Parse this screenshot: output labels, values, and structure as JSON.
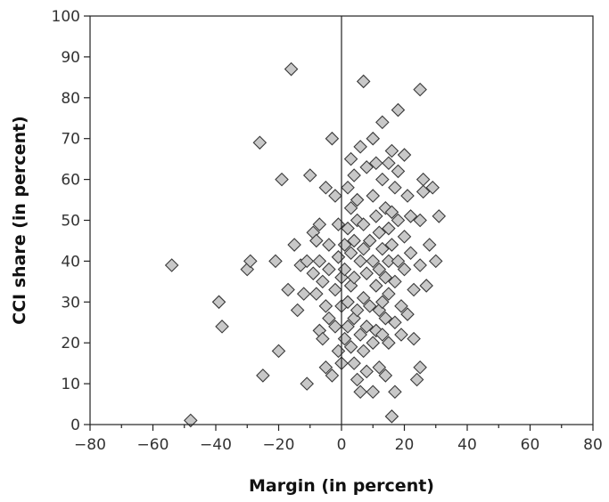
{
  "chart_data": {
    "type": "scatter",
    "title": "",
    "xlabel": "Margin (in percent)",
    "ylabel": "CCI share (in percent)",
    "xlim": [
      -80,
      80
    ],
    "ylim": [
      0,
      100
    ],
    "xticks": [
      -80,
      -60,
      -40,
      -20,
      0,
      20,
      40,
      60,
      80
    ],
    "yticks": [
      0,
      10,
      20,
      30,
      40,
      50,
      60,
      70,
      80,
      90,
      100
    ],
    "xtick_labels": [
      "−80",
      "−60",
      "−40",
      "−20",
      "0",
      "20",
      "40",
      "60",
      "80"
    ],
    "ytick_labels": [
      "0",
      "10",
      "20",
      "30",
      "40",
      "50",
      "60",
      "70",
      "80",
      "90",
      "100"
    ],
    "grid": false,
    "reference_line_x": 0,
    "marker": "diamond",
    "marker_color": "#c8c8c8",
    "points": [
      [
        -54,
        39
      ],
      [
        -48,
        1
      ],
      [
        -39,
        30
      ],
      [
        -38,
        24
      ],
      [
        -30,
        38
      ],
      [
        -29,
        40
      ],
      [
        -26,
        69
      ],
      [
        -25,
        12
      ],
      [
        -21,
        40
      ],
      [
        -20,
        18
      ],
      [
        -19,
        60
      ],
      [
        -17,
        33
      ],
      [
        -16,
        87
      ],
      [
        -15,
        44
      ],
      [
        -14,
        28
      ],
      [
        -13,
        39
      ],
      [
        -12,
        32
      ],
      [
        -11,
        10
      ],
      [
        -11,
        40
      ],
      [
        -10,
        61
      ],
      [
        -9,
        37
      ],
      [
        -9,
        47
      ],
      [
        -8,
        32
      ],
      [
        -8,
        45
      ],
      [
        -7,
        49
      ],
      [
        -7,
        40
      ],
      [
        -7,
        23
      ],
      [
        -6,
        21
      ],
      [
        -6,
        35
      ],
      [
        -5,
        29
      ],
      [
        -5,
        58
      ],
      [
        -5,
        14
      ],
      [
        -4,
        44
      ],
      [
        -4,
        26
      ],
      [
        -4,
        38
      ],
      [
        -3,
        70
      ],
      [
        -3,
        12
      ],
      [
        -2,
        56
      ],
      [
        -2,
        33
      ],
      [
        -2,
        24
      ],
      [
        -1,
        49
      ],
      [
        -1,
        41
      ],
      [
        -1,
        18
      ],
      [
        0,
        29
      ],
      [
        0,
        36
      ],
      [
        0,
        15
      ],
      [
        1,
        44
      ],
      [
        1,
        38
      ],
      [
        1,
        21
      ],
      [
        2,
        58
      ],
      [
        2,
        48
      ],
      [
        2,
        30
      ],
      [
        2,
        24
      ],
      [
        3,
        65
      ],
      [
        3,
        53
      ],
      [
        3,
        42
      ],
      [
        3,
        34
      ],
      [
        3,
        19
      ],
      [
        4,
        61
      ],
      [
        4,
        45
      ],
      [
        4,
        36
      ],
      [
        4,
        26
      ],
      [
        4,
        15
      ],
      [
        5,
        55
      ],
      [
        5,
        28
      ],
      [
        5,
        11
      ],
      [
        5,
        50
      ],
      [
        6,
        68
      ],
      [
        6,
        40
      ],
      [
        6,
        22
      ],
      [
        6,
        8
      ],
      [
        7,
        84
      ],
      [
        7,
        49
      ],
      [
        7,
        43
      ],
      [
        7,
        31
      ],
      [
        7,
        18
      ],
      [
        8,
        63
      ],
      [
        8,
        37
      ],
      [
        8,
        24
      ],
      [
        8,
        13
      ],
      [
        9,
        45
      ],
      [
        9,
        29
      ],
      [
        10,
        70
      ],
      [
        10,
        56
      ],
      [
        10,
        40
      ],
      [
        10,
        20
      ],
      [
        10,
        8
      ],
      [
        11,
        64
      ],
      [
        11,
        51
      ],
      [
        11,
        34
      ],
      [
        11,
        23
      ],
      [
        12,
        47
      ],
      [
        12,
        38
      ],
      [
        12,
        28
      ],
      [
        12,
        14
      ],
      [
        13,
        74
      ],
      [
        13,
        60
      ],
      [
        13,
        43
      ],
      [
        13,
        30
      ],
      [
        13,
        22
      ],
      [
        14,
        53
      ],
      [
        14,
        36
      ],
      [
        14,
        26
      ],
      [
        14,
        12
      ],
      [
        15,
        64
      ],
      [
        15,
        48
      ],
      [
        15,
        40
      ],
      [
        15,
        32
      ],
      [
        15,
        20
      ],
      [
        16,
        67
      ],
      [
        16,
        2
      ],
      [
        16,
        52
      ],
      [
        16,
        44
      ],
      [
        17,
        58
      ],
      [
        17,
        35
      ],
      [
        17,
        25
      ],
      [
        17,
        8
      ],
      [
        18,
        77
      ],
      [
        18,
        62
      ],
      [
        18,
        50
      ],
      [
        18,
        40
      ],
      [
        19,
        29
      ],
      [
        19,
        22
      ],
      [
        20,
        66
      ],
      [
        20,
        46
      ],
      [
        20,
        38
      ],
      [
        21,
        56
      ],
      [
        21,
        27
      ],
      [
        22,
        51
      ],
      [
        22,
        42
      ],
      [
        23,
        33
      ],
      [
        23,
        21
      ],
      [
        24,
        11
      ],
      [
        25,
        82
      ],
      [
        25,
        50
      ],
      [
        25,
        39
      ],
      [
        25,
        14
      ],
      [
        26,
        60
      ],
      [
        26,
        57
      ],
      [
        27,
        34
      ],
      [
        28,
        44
      ],
      [
        29,
        58
      ],
      [
        30,
        40
      ],
      [
        31,
        51
      ]
    ]
  }
}
